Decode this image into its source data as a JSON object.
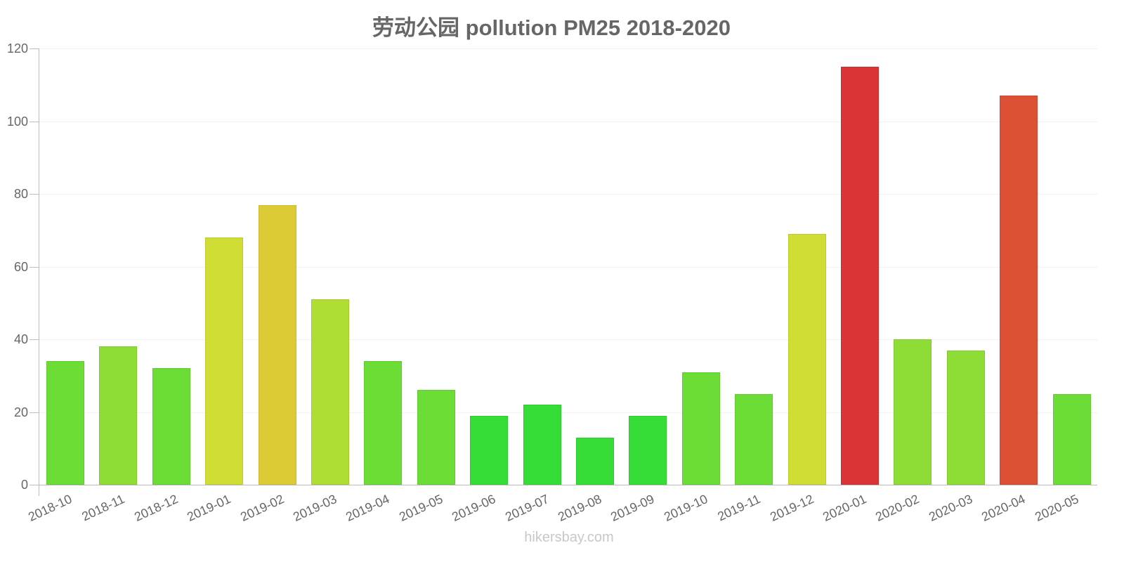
{
  "title": "劳动公园 pollution PM25 2018-2020",
  "watermark": "hikersbay.com",
  "chart_data": {
    "type": "bar",
    "title": "劳动公园 pollution PM25 2018-2020",
    "xlabel": "",
    "ylabel": "",
    "ylim": [
      0,
      120
    ],
    "yticks": [
      0,
      20,
      40,
      60,
      80,
      100,
      120
    ],
    "grid": true,
    "legend": "none",
    "categories": [
      "2018-10",
      "2018-11",
      "2018-12",
      "2019-01",
      "2019-02",
      "2019-03",
      "2019-04",
      "2019-05",
      "2019-06",
      "2019-07",
      "2019-08",
      "2019-09",
      "2019-10",
      "2019-11",
      "2019-12",
      "2020-01",
      "2020-02",
      "2020-03",
      "2020-04",
      "2020-05"
    ],
    "values": [
      34,
      38,
      32,
      68,
      77,
      51,
      34,
      26,
      19,
      22,
      13,
      19,
      31,
      25,
      69,
      115,
      40,
      37,
      107,
      25
    ],
    "colors": [
      "#6bdd36",
      "#8ddd36",
      "#6bdd36",
      "#cfdd34",
      "#dccb34",
      "#afdd34",
      "#6bdd36",
      "#6bdd36",
      "#35dd36",
      "#35dd36",
      "#35dd36",
      "#35dd36",
      "#6bdd36",
      "#6bdd36",
      "#cfdd34",
      "#da3434",
      "#8ddd36",
      "#8ddd36",
      "#dc5034",
      "#6bdd36"
    ]
  }
}
